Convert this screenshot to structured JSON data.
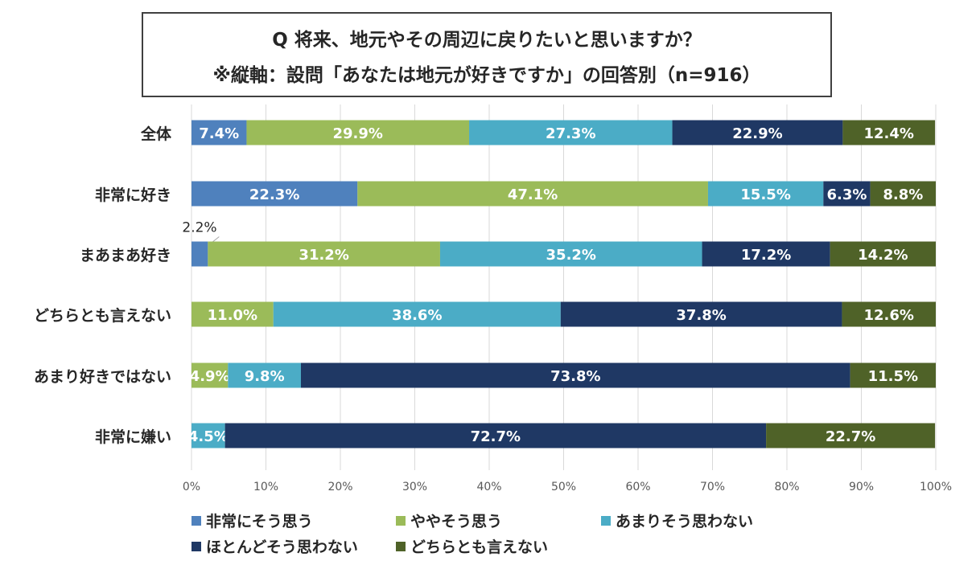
{
  "title": {
    "line1": "Q 将来、地元やその周辺に戻りたいと思いますか？",
    "line2": "※縦軸：設問「あなたは地元が好きですか」の回答別（n=916）"
  },
  "chart_data": {
    "type": "bar",
    "orientation": "horizontal",
    "stacked": true,
    "categories": [
      "全体",
      "非常に好き",
      "まあまあ好き",
      "どちらとも言えない",
      "あまり好きではない",
      "非常に嫌い"
    ],
    "series": [
      {
        "name": "非常にそう思う",
        "color": "#4F81BD",
        "values": [
          7.4,
          22.3,
          2.2,
          0,
          0,
          0
        ],
        "labels": [
          "7.4%",
          "22.3%",
          "2.2%",
          "",
          "",
          ""
        ]
      },
      {
        "name": "ややそう思う",
        "color": "#9BBB59",
        "values": [
          29.9,
          47.1,
          31.2,
          11.0,
          4.9,
          0
        ],
        "labels": [
          "29.9%",
          "47.1%",
          "31.2%",
          "11.0%",
          "4.9%",
          ""
        ]
      },
      {
        "name": "あまりそう思わない",
        "color": "#4BACC6",
        "values": [
          27.3,
          15.5,
          35.2,
          38.6,
          9.8,
          4.5
        ],
        "labels": [
          "27.3%",
          "15.5%",
          "35.2%",
          "38.6%",
          "9.8%",
          "4.5%"
        ]
      },
      {
        "name": "ほとんどそう思わない",
        "color": "#1F3864",
        "values": [
          22.9,
          6.3,
          17.2,
          37.8,
          73.8,
          72.7
        ],
        "labels": [
          "22.9%",
          "6.3%",
          "17.2%",
          "37.8%",
          "73.8%",
          "72.7%"
        ]
      },
      {
        "name": "どちらとも言えない",
        "color": "#4F6228",
        "values": [
          12.4,
          8.8,
          14.2,
          12.6,
          11.5,
          22.7
        ],
        "labels": [
          "12.4%",
          "8.8%",
          "14.2%",
          "12.6%",
          "11.5%",
          "22.7%"
        ]
      }
    ],
    "x_ticks": [
      "0%",
      "10%",
      "20%",
      "30%",
      "40%",
      "50%",
      "60%",
      "70%",
      "80%",
      "90%",
      "100%"
    ],
    "xlim": [
      0,
      100
    ],
    "grid": true,
    "legend_position": "bottom",
    "legend": [
      "非常にそう思う",
      "ややそう思う",
      "あまりそう思わない",
      "ほとんどそう思わない",
      "どちらとも言えない"
    ]
  }
}
